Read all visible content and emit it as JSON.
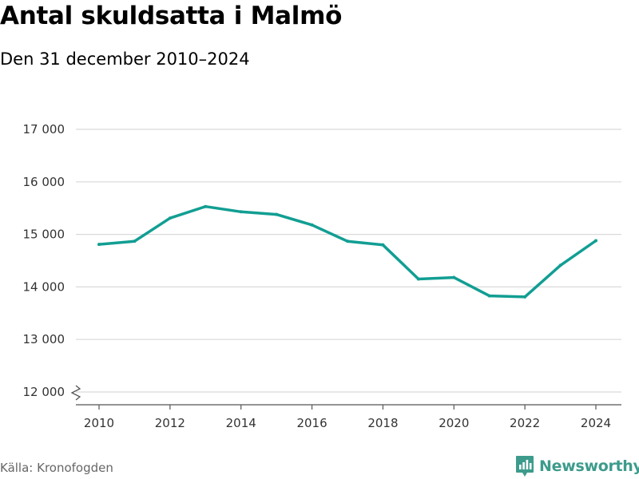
{
  "title": "Antal skuldsatta i Malmö",
  "subtitle": "Den 31 december 2010–2024",
  "source": "Källa: Kronofogden",
  "brand": {
    "name": "Newsworthy",
    "color": "#3d9b8c",
    "icon": "bar-chart-badge-icon"
  },
  "colors": {
    "line": "#129e93",
    "grid": "#d9d9d9",
    "axis": "#555555"
  },
  "chart_data": {
    "type": "line",
    "title": "Antal skuldsatta i Malmö",
    "subtitle": "Den 31 december 2010–2024",
    "xlabel": "",
    "ylabel": "",
    "x": [
      2010,
      2011,
      2012,
      2013,
      2014,
      2015,
      2016,
      2017,
      2018,
      2019,
      2020,
      2021,
      2022,
      2023,
      2024
    ],
    "series": [
      {
        "values": [
          14810,
          14870,
          15310,
          15530,
          15430,
          15380,
          15180,
          14870,
          14800,
          14150,
          14180,
          13830,
          13810,
          14410,
          14880
        ]
      }
    ],
    "xlim": [
      2010,
      2024
    ],
    "ylim": [
      12000,
      17000
    ],
    "xticks": [
      2010,
      2012,
      2014,
      2016,
      2018,
      2020,
      2022,
      2024
    ],
    "xtick_labels": [
      "2010",
      "2012",
      "2014",
      "2016",
      "2018",
      "2020",
      "2022",
      "2024"
    ],
    "yticks": [
      12000,
      13000,
      14000,
      15000,
      16000,
      17000
    ],
    "ytick_labels": [
      "12 000",
      "13 000",
      "14 000",
      "15 000",
      "16 000",
      "17 000"
    ],
    "grid": true,
    "axis_break": true,
    "legend": "none"
  }
}
